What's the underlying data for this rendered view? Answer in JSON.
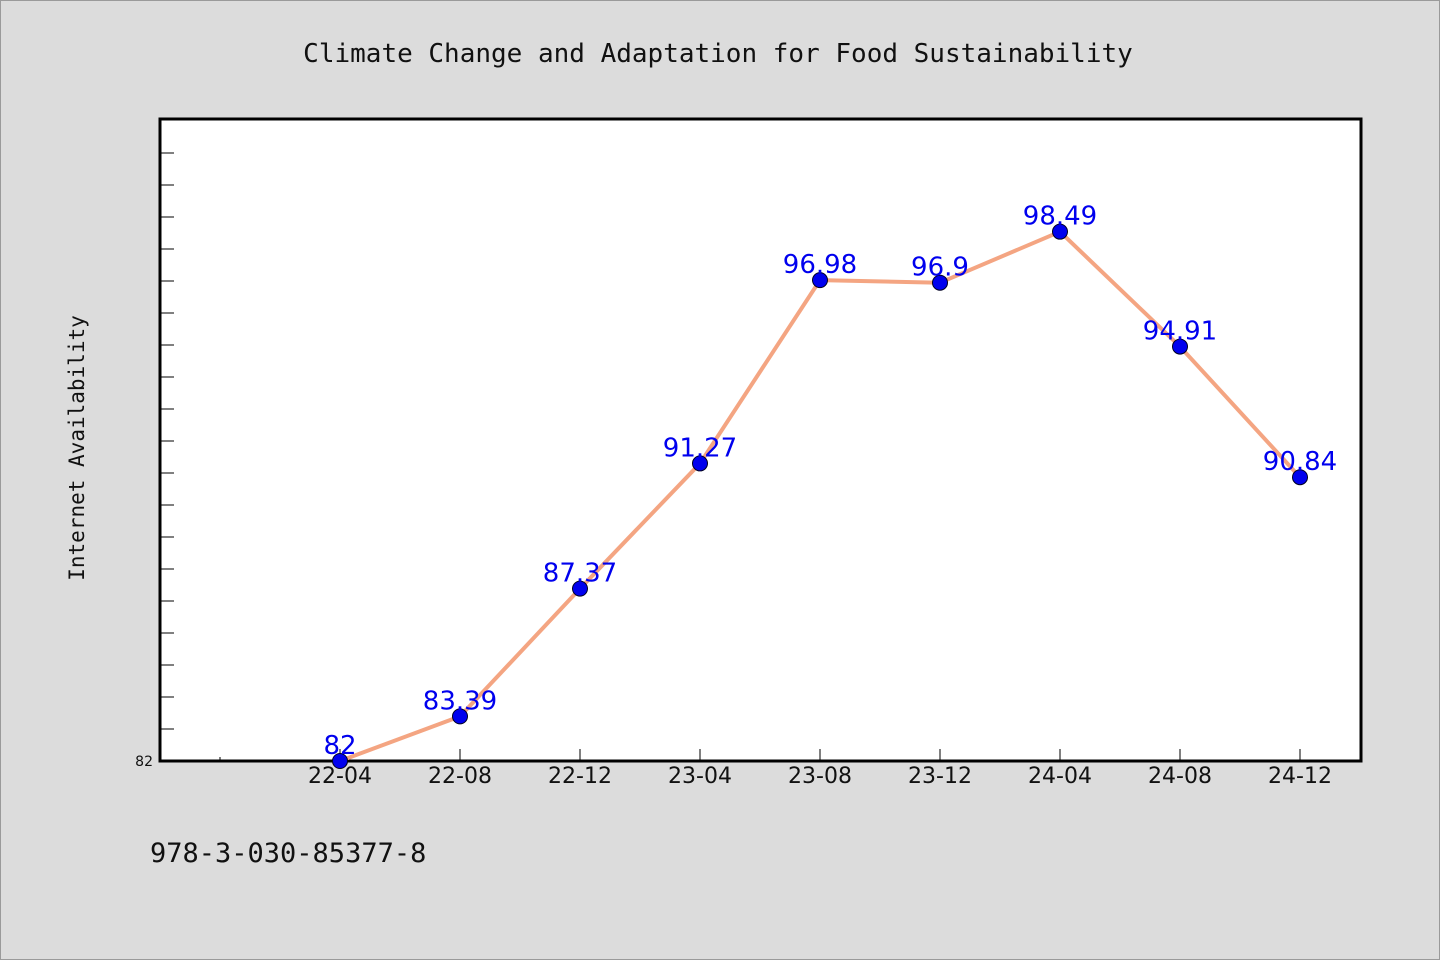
{
  "chart_data": {
    "type": "line",
    "title": "Climate Change and Adaptation for Food Sustainability",
    "xlabel": "",
    "ylabel": "Internet Availability",
    "categories": [
      "22-04",
      "22-08",
      "22-12",
      "23-04",
      "23-08",
      "23-12",
      "24-04",
      "24-08",
      "24-12"
    ],
    "series": [
      {
        "values": [
          82,
          83.39,
          87.37,
          91.27,
          96.98,
          96.9,
          98.49,
          94.91,
          90.84
        ],
        "labels": [
          "82",
          "83.39",
          "87.37",
          "91.27",
          "96.98",
          "96.9",
          "98.49",
          "94.91",
          "90.84"
        ]
      }
    ],
    "y_tick_labels": [
      "82"
    ],
    "ylim": [
      82,
      102
    ],
    "grid": false,
    "colors": {
      "line": "#f4a582",
      "marker": "#0000ee",
      "data_label": "#0000ee",
      "plot_background": "#ffffff",
      "figure_background": "#dcdcdc"
    }
  },
  "footer": {
    "isbn": "978-3-030-85377-8"
  }
}
